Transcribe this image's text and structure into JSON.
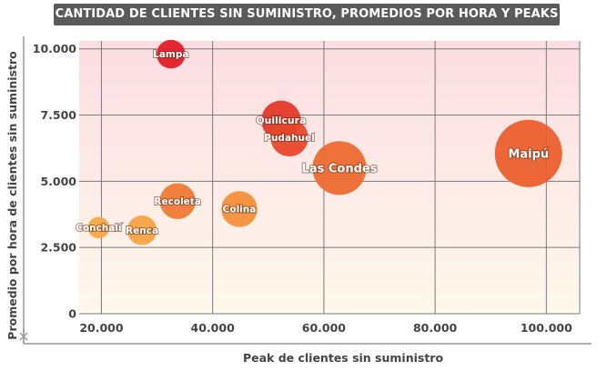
{
  "title": "CANTIDAD DE CLIENTES SIN SUMINISTRO, PROMEDIOS POR HORA Y PEAKS",
  "chart_data": {
    "type": "scatter",
    "variant": "bubble",
    "title": "CANTIDAD DE CLIENTES SIN SUMINISTRO, PROMEDIOS POR HORA Y PEAKS",
    "xlabel": "Peak de clientes sin suministro",
    "ylabel": "Promedio por hora de clientes sin suministro",
    "xlim": [
      16000,
      106000
    ],
    "ylim": [
      0,
      10300
    ],
    "x_ticks": [
      20000,
      40000,
      60000,
      80000,
      100000
    ],
    "x_tick_labels": [
      "20.000",
      "40.000",
      "60.000",
      "80.000",
      "100.000"
    ],
    "y_ticks": [
      0,
      2500,
      5000,
      7500,
      10000
    ],
    "y_tick_labels": [
      "0",
      "2.500",
      "5.000",
      "7.500",
      "10.000"
    ],
    "grid": true,
    "background_gradient": [
      "#fbdde2",
      "#fff8ec"
    ],
    "points": [
      {
        "label": "Lampa",
        "x": 32500,
        "y": 9800,
        "r_rel": 0.32,
        "color": "#e21d27"
      },
      {
        "label": "Quilicura",
        "x": 52300,
        "y": 7300,
        "r_rel": 0.44,
        "color": "#e5392a"
      },
      {
        "label": "Pudahuel",
        "x": 53800,
        "y": 6650,
        "r_rel": 0.42,
        "color": "#e9462b"
      },
      {
        "label": "Las Condes",
        "x": 62800,
        "y": 5500,
        "r_rel": 0.6,
        "color": "#ee6a30"
      },
      {
        "label": "Maipú",
        "x": 96800,
        "y": 6050,
        "r_rel": 0.75,
        "color": "#ec5f2e"
      },
      {
        "label": "Recoleta",
        "x": 33700,
        "y": 4250,
        "r_rel": 0.4,
        "color": "#f07a36"
      },
      {
        "label": "Colina",
        "x": 44800,
        "y": 3950,
        "r_rel": 0.4,
        "color": "#f58f3a"
      },
      {
        "label": "Conchalí",
        "x": 19500,
        "y": 3250,
        "r_rel": 0.24,
        "color": "#f8a845"
      },
      {
        "label": "Renca",
        "x": 27300,
        "y": 3150,
        "r_rel": 0.33,
        "color": "#f8a246"
      }
    ]
  }
}
